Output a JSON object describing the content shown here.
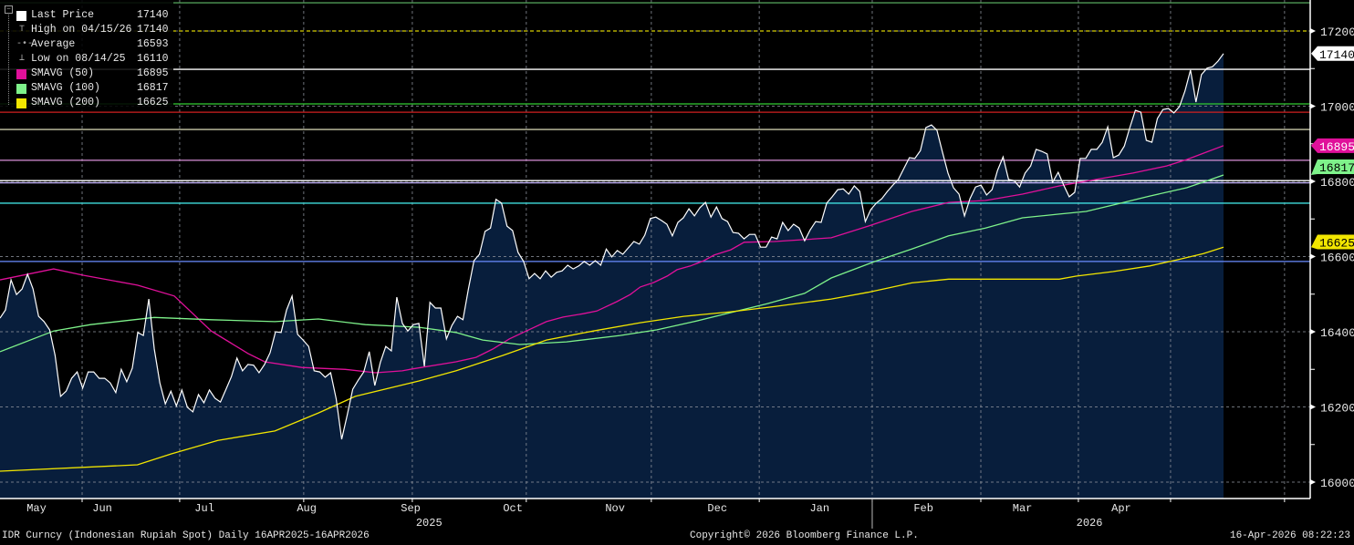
{
  "legend": {
    "items": [
      {
        "label": "Last Price",
        "value": "17140",
        "color": "#ffffff",
        "icon": "square"
      },
      {
        "label": "High on 04/15/26",
        "value": "17140",
        "icon": "high-marker-icon"
      },
      {
        "label": "Average",
        "value": "16593",
        "icon": "average-marker-icon"
      },
      {
        "label": "Low on 08/14/25",
        "value": "16110",
        "icon": "low-marker-icon"
      },
      {
        "label": "SMAVG (50)",
        "value": "16895",
        "color": "#e0109a",
        "icon": "square"
      },
      {
        "label": "SMAVG (100)",
        "value": "16817",
        "color": "#7ef28a",
        "icon": "square"
      },
      {
        "label": "SMAVG (200)",
        "value": "16625",
        "color": "#f2e600",
        "icon": "square"
      }
    ]
  },
  "footer": {
    "left": "IDR Curncy (Indonesian Rupiah Spot) Daily 16APR2025-16APR2026",
    "center": "Copyright© 2026 Bloomberg Finance L.P.",
    "right": "16-Apr-2026 08:22:23"
  },
  "chart_data": {
    "type": "area",
    "title": "IDR Curncy (Indonesian Rupiah Spot) Daily 16APR2025-16APR2026",
    "x_unit": "days since 2025-04-16",
    "x_range": [
      0,
      365
    ],
    "ylim": [
      15955,
      17285
    ],
    "y_ticks": [
      16000,
      16200,
      16400,
      16600,
      16800,
      17000,
      17200
    ],
    "y_minor_ticks": [
      16100,
      16300,
      16500,
      16700,
      16900,
      17100
    ],
    "grid": true,
    "months": [
      {
        "label": "May",
        "start": -1,
        "end": 15
      },
      {
        "label": "Jun",
        "start": 15,
        "end": 46
      },
      {
        "label": "Jul",
        "start": 46,
        "end": 76
      },
      {
        "label": "Aug",
        "start": 76,
        "end": 107
      },
      {
        "label": "Sep",
        "start": 107,
        "end": 138
      },
      {
        "label": "Oct",
        "start": 138,
        "end": 168
      },
      {
        "label": "Nov",
        "start": 168,
        "end": 199
      },
      {
        "label": "Dec",
        "start": 199,
        "end": 229
      },
      {
        "label": "Jan",
        "start": 229,
        "end": 260
      },
      {
        "label": "Feb",
        "start": 260,
        "end": 291
      },
      {
        "label": "Mar",
        "start": 291,
        "end": 319
      },
      {
        "label": "Apr",
        "start": 319,
        "end": 350
      }
    ],
    "month_boundaries": [
      24.5,
      53.6,
      90.6,
      123,
      157,
      194.3,
      226.5,
      260.2,
      292.6,
      321.7,
      349.2,
      383.2
    ],
    "years": [
      {
        "label": "2025",
        "at": 128
      },
      {
        "label": "2026",
        "at": 325
      }
    ],
    "year_divider": 260.2,
    "price_series": {
      "name": "Last Price",
      "color": "#ffffff",
      "fill": "#081e3c",
      "values": [
        16436,
        16458,
        16538,
        16499,
        16514,
        16553,
        16514,
        16441,
        16427,
        16405,
        16337,
        16228,
        16242,
        16276,
        16293,
        16250,
        16293,
        16293,
        16276,
        16276,
        16264,
        16238,
        16300,
        16267,
        16303,
        16398,
        16390,
        16487,
        16354,
        16264,
        16208,
        16242,
        16203,
        16245,
        16199,
        16187,
        16233,
        16211,
        16245,
        16223,
        16213,
        16247,
        16281,
        16330,
        16296,
        16313,
        16311,
        16291,
        16313,
        16344,
        16400,
        16398,
        16458,
        16495,
        16393,
        16378,
        16361,
        16296,
        16293,
        16279,
        16291,
        16221,
        16114,
        16179,
        16247,
        16271,
        16293,
        16347,
        16257,
        16318,
        16361,
        16349,
        16492,
        16422,
        16402,
        16419,
        16422,
        16308,
        16478,
        16463,
        16463,
        16381,
        16417,
        16441,
        16432,
        16514,
        16589,
        16606,
        16667,
        16676,
        16752,
        16742,
        16681,
        16669,
        16611,
        16587,
        16541,
        16555,
        16541,
        16562,
        16545,
        16558,
        16562,
        16577,
        16567,
        16575,
        16587,
        16577,
        16589,
        16577,
        16620,
        16599,
        16616,
        16606,
        16623,
        16640,
        16633,
        16657,
        16701,
        16705,
        16696,
        16686,
        16655,
        16691,
        16703,
        16727,
        16708,
        16730,
        16744,
        16705,
        16732,
        16701,
        16693,
        16664,
        16662,
        16647,
        16659,
        16659,
        16625,
        16625,
        16652,
        16647,
        16691,
        16669,
        16686,
        16676,
        16642,
        16671,
        16693,
        16691,
        16742,
        16759,
        16778,
        16780,
        16766,
        16788,
        16773,
        16693,
        16725,
        16742,
        16754,
        16773,
        16790,
        16805,
        16834,
        16863,
        16861,
        16882,
        16943,
        16950,
        16936,
        16878,
        16822,
        16783,
        16766,
        16708,
        16754,
        16785,
        16790,
        16764,
        16778,
        16829,
        16865,
        16805,
        16802,
        16785,
        16822,
        16841,
        16885,
        16880,
        16873,
        16798,
        16824,
        16790,
        16759,
        16771,
        16861,
        16861,
        16885,
        16885,
        16904,
        16945,
        16863,
        16870,
        16894,
        16943,
        16989,
        16984,
        16909,
        16904,
        16967,
        16991,
        16994,
        16982,
        16999,
        17040,
        17096,
        17011,
        17084,
        17101,
        17105,
        17120,
        17140
      ]
    },
    "sma_series": [
      {
        "name": "SMAVG (50)",
        "color": "#e0109a",
        "points": [
          [
            0,
            16538
          ],
          [
            16,
            16567
          ],
          [
            25,
            16550
          ],
          [
            41,
            16524
          ],
          [
            52,
            16495
          ],
          [
            63,
            16402
          ],
          [
            74,
            16342
          ],
          [
            79,
            16320
          ],
          [
            90,
            16305
          ],
          [
            103,
            16300
          ],
          [
            112,
            16291
          ],
          [
            120,
            16296
          ],
          [
            123,
            16301
          ],
          [
            136,
            16320
          ],
          [
            142,
            16332
          ],
          [
            147,
            16354
          ],
          [
            152,
            16381
          ],
          [
            157,
            16402
          ],
          [
            163,
            16427
          ],
          [
            168,
            16439
          ],
          [
            174,
            16448
          ],
          [
            178,
            16455
          ],
          [
            184,
            16480
          ],
          [
            188,
            16499
          ],
          [
            191,
            16519
          ],
          [
            195,
            16531
          ],
          [
            199,
            16548
          ],
          [
            202,
            16565
          ],
          [
            206,
            16575
          ],
          [
            210,
            16589
          ],
          [
            213,
            16604
          ],
          [
            218,
            16618
          ],
          [
            222,
            16638
          ],
          [
            231,
            16640
          ],
          [
            240,
            16645
          ],
          [
            248,
            16650
          ],
          [
            259,
            16681
          ],
          [
            272,
            16720
          ],
          [
            283,
            16744
          ],
          [
            294,
            16749
          ],
          [
            305,
            16766
          ],
          [
            316,
            16788
          ],
          [
            327,
            16805
          ],
          [
            338,
            16822
          ],
          [
            348,
            16841
          ],
          [
            354,
            16858
          ],
          [
            359,
            16875
          ],
          [
            365,
            16895
          ]
        ]
      },
      {
        "name": "SMAVG (100)",
        "color": "#7ef28a",
        "points": [
          [
            0,
            16347
          ],
          [
            16,
            16402
          ],
          [
            27,
            16419
          ],
          [
            46,
            16438
          ],
          [
            63,
            16432
          ],
          [
            82,
            16427
          ],
          [
            95,
            16434
          ],
          [
            109,
            16419
          ],
          [
            125,
            16412
          ],
          [
            136,
            16398
          ],
          [
            144,
            16378
          ],
          [
            155,
            16366
          ],
          [
            169,
            16373
          ],
          [
            185,
            16390
          ],
          [
            196,
            16405
          ],
          [
            207,
            16427
          ],
          [
            218,
            16451
          ],
          [
            229,
            16475
          ],
          [
            240,
            16502
          ],
          [
            248,
            16543
          ],
          [
            253,
            16560
          ],
          [
            261,
            16587
          ],
          [
            272,
            16620
          ],
          [
            283,
            16655
          ],
          [
            294,
            16676
          ],
          [
            305,
            16703
          ],
          [
            316,
            16713
          ],
          [
            324,
            16720
          ],
          [
            332,
            16737
          ],
          [
            343,
            16761
          ],
          [
            354,
            16783
          ],
          [
            359,
            16798
          ],
          [
            365,
            16817
          ]
        ]
      },
      {
        "name": "SMAVG (200)",
        "color": "#f2e600",
        "points": [
          [
            0,
            16029
          ],
          [
            41,
            16046
          ],
          [
            51,
            16075
          ],
          [
            65,
            16111
          ],
          [
            82,
            16136
          ],
          [
            95,
            16184
          ],
          [
            106,
            16228
          ],
          [
            125,
            16269
          ],
          [
            136,
            16296
          ],
          [
            150,
            16337
          ],
          [
            163,
            16378
          ],
          [
            177,
            16402
          ],
          [
            191,
            16424
          ],
          [
            204,
            16441
          ],
          [
            218,
            16453
          ],
          [
            231,
            16467
          ],
          [
            248,
            16487
          ],
          [
            259,
            16505
          ],
          [
            272,
            16530
          ],
          [
            283,
            16540
          ],
          [
            299,
            16540
          ],
          [
            316,
            16540
          ],
          [
            321,
            16548
          ],
          [
            332,
            16560
          ],
          [
            343,
            16575
          ],
          [
            351,
            16591
          ],
          [
            359,
            16608
          ],
          [
            365,
            16625
          ]
        ]
      }
    ],
    "reference_lines": [
      {
        "value": 17275,
        "color": "#4f9a55",
        "dashed": false
      },
      {
        "value": 17200,
        "color": "#d8d000",
        "dashed": true
      },
      {
        "value": 17098,
        "color": "#ffffff",
        "dashed": false
      },
      {
        "value": 17006,
        "color": "#33cc33",
        "dashed": false
      },
      {
        "value": 16984,
        "color": "#d02020",
        "dashed": false
      },
      {
        "value": 16938,
        "color": "#c8c8a8",
        "dashed": false
      },
      {
        "value": 16856,
        "color": "#d890d8",
        "dashed": false
      },
      {
        "value": 16802,
        "color": "#ffffff",
        "dashed": false
      },
      {
        "value": 16796,
        "color": "#c8b8ff",
        "dashed": false
      },
      {
        "value": 16742,
        "color": "#40e0e0",
        "dashed": false
      },
      {
        "value": 16587,
        "color": "#6a8cff",
        "dashed": false
      }
    ],
    "axis_tags": [
      {
        "value": 17140,
        "label": "17140",
        "bg": "#ffffff",
        "fg": "#000000"
      },
      {
        "value": 16895,
        "label": "16895",
        "bg": "#e0109a",
        "fg": "#ffffff"
      },
      {
        "value": 16817,
        "label": "16817",
        "bg": "#7ef28a",
        "fg": "#000000"
      },
      {
        "value": 16625,
        "label": "16625",
        "bg": "#f2e600",
        "fg": "#000000"
      }
    ]
  }
}
